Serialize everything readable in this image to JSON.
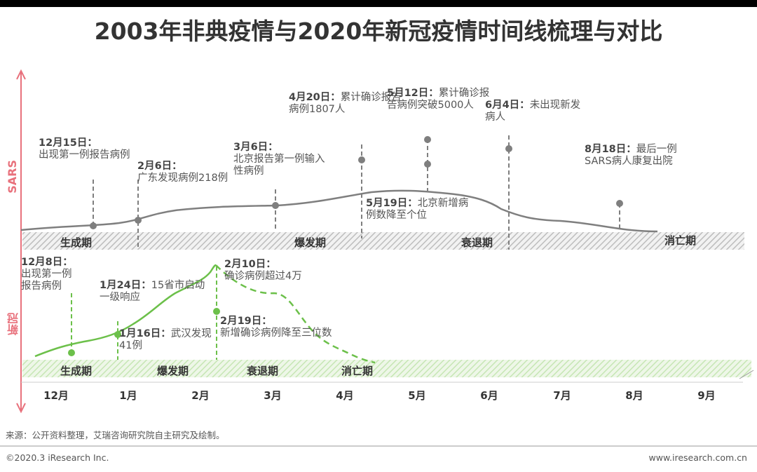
{
  "title": "2003年非典疫情与2020年新冠疫情时间线梳理与对比",
  "axis": {
    "sars_label": "SARS",
    "covid_label": "新冠"
  },
  "months": [
    "12月",
    "1月",
    "2月",
    "3月",
    "4月",
    "5月",
    "6月",
    "7月",
    "8月",
    "9月"
  ],
  "sars": {
    "phases": [
      "生成期",
      "爆发期",
      "衰退期",
      "消亡期"
    ],
    "events": [
      {
        "date": "12月15日：",
        "text": [
          "出现第一例报告病例"
        ]
      },
      {
        "date": "2月6日：",
        "text": [
          "广东发现病例218例"
        ]
      },
      {
        "date": "3月6日：",
        "text": [
          "北京报告第一例输入",
          "性病例"
        ]
      },
      {
        "date": "4月20日：",
        "text": [
          "累计确诊报告",
          "病例1807人"
        ]
      },
      {
        "date": "5月12日：",
        "text": [
          "累计确诊报",
          "告病例突破5000人"
        ]
      },
      {
        "date": "5月19日：",
        "text": [
          "北京新增病",
          "例数降至个位"
        ]
      },
      {
        "date": "6月4日：",
        "text": [
          "未出现新发",
          "病人"
        ]
      },
      {
        "date": "8月18日：",
        "text": [
          "最后一例",
          "SARS病人康复出院"
        ]
      }
    ]
  },
  "covid": {
    "phases": [
      "生成期",
      "爆发期",
      "衰退期",
      "消亡期"
    ],
    "events": [
      {
        "date": "12月8日：",
        "text": [
          "出现第一例",
          "报告病例"
        ]
      },
      {
        "date": "1月24日：",
        "text": [
          "15省市启动",
          "一级响应"
        ]
      },
      {
        "date": "1月16日：",
        "text": [
          "武汉发现",
          "41例"
        ]
      },
      {
        "date": "2月10日：",
        "text": [
          "确诊病例超过4万"
        ]
      },
      {
        "date": "2月19日：",
        "text": [
          "新增确诊病例降至三位数"
        ]
      }
    ]
  },
  "colors": {
    "sars": "#7f7f7f",
    "covid": "#6cc04a",
    "axis": "#e8717c"
  },
  "footer": {
    "source": "来源：公开资料整理，艾瑞咨询研究院自主研究及绘制。",
    "copyright": "©2020.3 iResearch Inc.",
    "website": "www.iresearch.com.cn"
  }
}
